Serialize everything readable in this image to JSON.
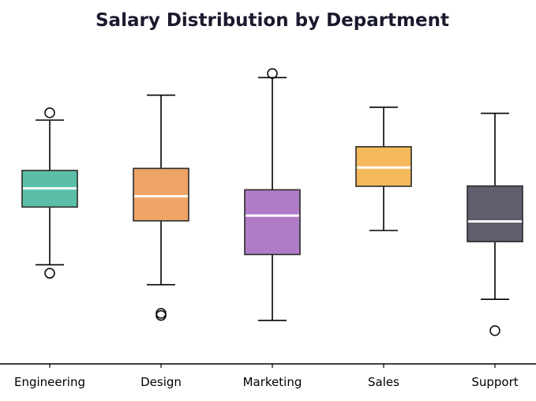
{
  "chart_data": {
    "type": "box",
    "title": "Salary Distribution by Department",
    "xlabel": "",
    "ylabel": "",
    "y_axis_visible": false,
    "grid": false,
    "legend": "none",
    "ylim": [
      0,
      100
    ],
    "categories": [
      "Engineering",
      "Design",
      "Marketing",
      "Sales",
      "Support"
    ],
    "boxes": [
      {
        "category": "Engineering",
        "whisker_low": 29.0,
        "q1": 48.7,
        "median": 55.1,
        "q3": 61.2,
        "whisker_high": 78.4,
        "outliers": [
          26.1,
          80.9
        ],
        "color": "#5bbfa8"
      },
      {
        "category": "Design",
        "whisker_low": 22.2,
        "q1": 44.0,
        "median": 52.4,
        "q3": 61.9,
        "whisker_high": 86.9,
        "outliers": [
          12.4,
          11.7
        ],
        "color": "#eea466"
      },
      {
        "category": "Marketing",
        "whisker_low": 10.0,
        "q1": 32.5,
        "median": 45.8,
        "q3": 54.6,
        "whisker_high": 92.9,
        "outliers": [
          94.3
        ],
        "color": "#b07cc6"
      },
      {
        "category": "Sales",
        "whisker_low": 40.7,
        "q1": 55.8,
        "median": 62.2,
        "q3": 69.3,
        "whisker_high": 82.8,
        "outliers": [],
        "color": "#f4b95a"
      },
      {
        "category": "Support",
        "whisker_low": 17.2,
        "q1": 36.9,
        "median": 43.8,
        "q3": 55.9,
        "whisker_high": 80.7,
        "outliers": [
          6.5
        ],
        "color": "#5e5e6f"
      }
    ]
  }
}
